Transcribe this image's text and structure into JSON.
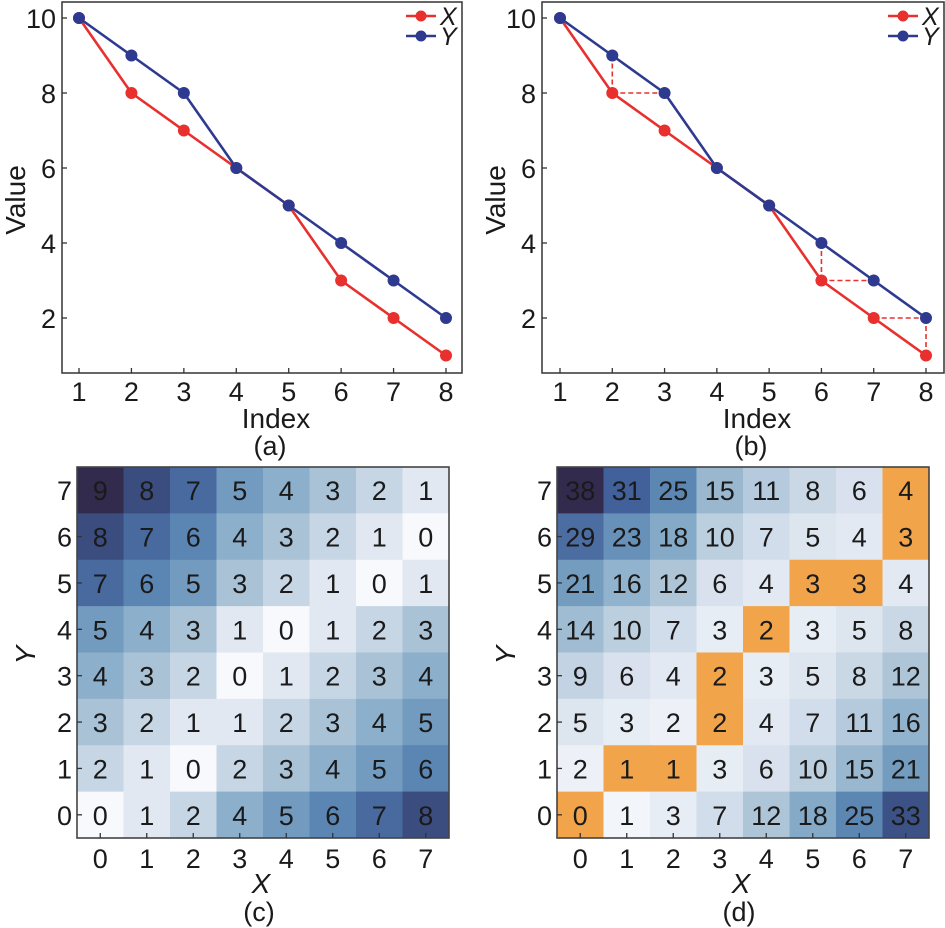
{
  "chart_data": [
    {
      "id": "a",
      "type": "line",
      "caption": "(a)",
      "xlabel": "Index",
      "ylabel": "Value",
      "x": [
        1,
        2,
        3,
        4,
        5,
        6,
        7,
        8
      ],
      "xticks": [
        "1",
        "2",
        "3",
        "4",
        "5",
        "6",
        "7",
        "8"
      ],
      "yticks": [
        "2",
        "4",
        "6",
        "8",
        "10"
      ],
      "ylim": [
        0.6,
        10.5
      ],
      "grid": false,
      "legend": "top-right",
      "series": [
        {
          "name": "X",
          "color": "#e8302e",
          "values": [
            10,
            8,
            7,
            6,
            5,
            3,
            2,
            1
          ]
        },
        {
          "name": "Y",
          "color": "#2e3a8f",
          "values": [
            10,
            9,
            8,
            6,
            5,
            4,
            3,
            2
          ]
        }
      ]
    },
    {
      "id": "b",
      "type": "line",
      "caption": "(b)",
      "xlabel": "Index",
      "ylabel": "Value",
      "x": [
        1,
        2,
        3,
        4,
        5,
        6,
        7,
        8
      ],
      "xticks": [
        "1",
        "2",
        "3",
        "4",
        "5",
        "6",
        "7",
        "8"
      ],
      "yticks": [
        "2",
        "4",
        "6",
        "8",
        "10"
      ],
      "ylim": [
        0.6,
        10.5
      ],
      "grid": false,
      "legend": "top-right",
      "series": [
        {
          "name": "X",
          "color": "#e8302e",
          "values": [
            10,
            8,
            7,
            6,
            5,
            3,
            2,
            1
          ]
        },
        {
          "name": "Y",
          "color": "#2e3a8f",
          "values": [
            10,
            9,
            8,
            6,
            5,
            4,
            3,
            2
          ]
        }
      ],
      "alignment_links": {
        "color": "#e8302e",
        "style": "dashed",
        "segments": [
          {
            "from": [
              "Y",
              2
            ],
            "to": [
              "X",
              2
            ]
          },
          {
            "from": [
              "X",
              2
            ],
            "to": [
              "Y",
              3
            ]
          },
          {
            "from": [
              "Y",
              6
            ],
            "to": [
              "X",
              6
            ]
          },
          {
            "from": [
              "X",
              6
            ],
            "to": [
              "Y",
              7
            ]
          },
          {
            "from": [
              "X",
              7
            ],
            "to": [
              "Y",
              8
            ]
          },
          {
            "from": [
              "Y",
              8
            ],
            "to": [
              "X",
              8
            ]
          }
        ]
      }
    },
    {
      "id": "c",
      "type": "heatmap",
      "caption": "(c)",
      "xlabel": "X",
      "ylabel": "Y",
      "xticks": [
        "0",
        "1",
        "2",
        "3",
        "4",
        "5",
        "6",
        "7"
      ],
      "yticks": [
        "0",
        "1",
        "2",
        "3",
        "4",
        "5",
        "6",
        "7"
      ],
      "colormap": [
        "#f7f9fc",
        "#d6e0ec",
        "#a9c2d6",
        "#7ea6c5",
        "#5b85b2",
        "#3f5c96",
        "#332b4e"
      ],
      "vmax": 9,
      "rows_top_to_bottom": [
        {
          "y": 7,
          "values": [
            9,
            8,
            7,
            5,
            4,
            3,
            2,
            1
          ]
        },
        {
          "y": 6,
          "values": [
            8,
            7,
            6,
            4,
            3,
            2,
            1,
            0
          ]
        },
        {
          "y": 5,
          "values": [
            7,
            6,
            5,
            3,
            2,
            1,
            0,
            1
          ]
        },
        {
          "y": 4,
          "values": [
            5,
            4,
            3,
            1,
            0,
            1,
            2,
            3
          ]
        },
        {
          "y": 3,
          "values": [
            4,
            3,
            2,
            0,
            1,
            2,
            3,
            4
          ]
        },
        {
          "y": 2,
          "values": [
            3,
            2,
            1,
            1,
            2,
            3,
            4,
            5
          ]
        },
        {
          "y": 1,
          "values": [
            2,
            1,
            0,
            2,
            3,
            4,
            5,
            6
          ]
        },
        {
          "y": 0,
          "values": [
            0,
            1,
            2,
            4,
            5,
            6,
            7,
            8
          ]
        }
      ]
    },
    {
      "id": "d",
      "type": "heatmap",
      "caption": "(d)",
      "xlabel": "X",
      "ylabel": "Y",
      "xticks": [
        "0",
        "1",
        "2",
        "3",
        "4",
        "5",
        "6",
        "7"
      ],
      "yticks": [
        "0",
        "1",
        "2",
        "3",
        "4",
        "5",
        "6",
        "7"
      ],
      "colormap": [
        "#f7f9fc",
        "#d6e0ec",
        "#a9c2d6",
        "#7ea6c5",
        "#5b85b2",
        "#3f5c96",
        "#332b4e"
      ],
      "vmax": 38,
      "path_color": "#f2a44a",
      "rows_top_to_bottom": [
        {
          "y": 7,
          "values": [
            38,
            31,
            25,
            15,
            11,
            8,
            6,
            4
          ]
        },
        {
          "y": 6,
          "values": [
            29,
            23,
            18,
            10,
            7,
            5,
            4,
            3
          ]
        },
        {
          "y": 5,
          "values": [
            21,
            16,
            12,
            6,
            4,
            3,
            3,
            4
          ]
        },
        {
          "y": 4,
          "values": [
            14,
            10,
            7,
            3,
            2,
            3,
            5,
            8
          ]
        },
        {
          "y": 3,
          "values": [
            9,
            6,
            4,
            2,
            3,
            5,
            8,
            12
          ]
        },
        {
          "y": 2,
          "values": [
            5,
            3,
            2,
            2,
            4,
            7,
            11,
            16
          ]
        },
        {
          "y": 1,
          "values": [
            2,
            1,
            1,
            3,
            6,
            10,
            15,
            21
          ]
        },
        {
          "y": 0,
          "values": [
            0,
            1,
            3,
            7,
            12,
            18,
            25,
            33
          ]
        }
      ],
      "warping_path": [
        [
          0,
          0
        ],
        [
          1,
          1
        ],
        [
          2,
          1
        ],
        [
          3,
          2
        ],
        [
          3,
          3
        ],
        [
          4,
          4
        ],
        [
          5,
          5
        ],
        [
          6,
          5
        ],
        [
          7,
          6
        ],
        [
          7,
          7
        ]
      ]
    }
  ]
}
